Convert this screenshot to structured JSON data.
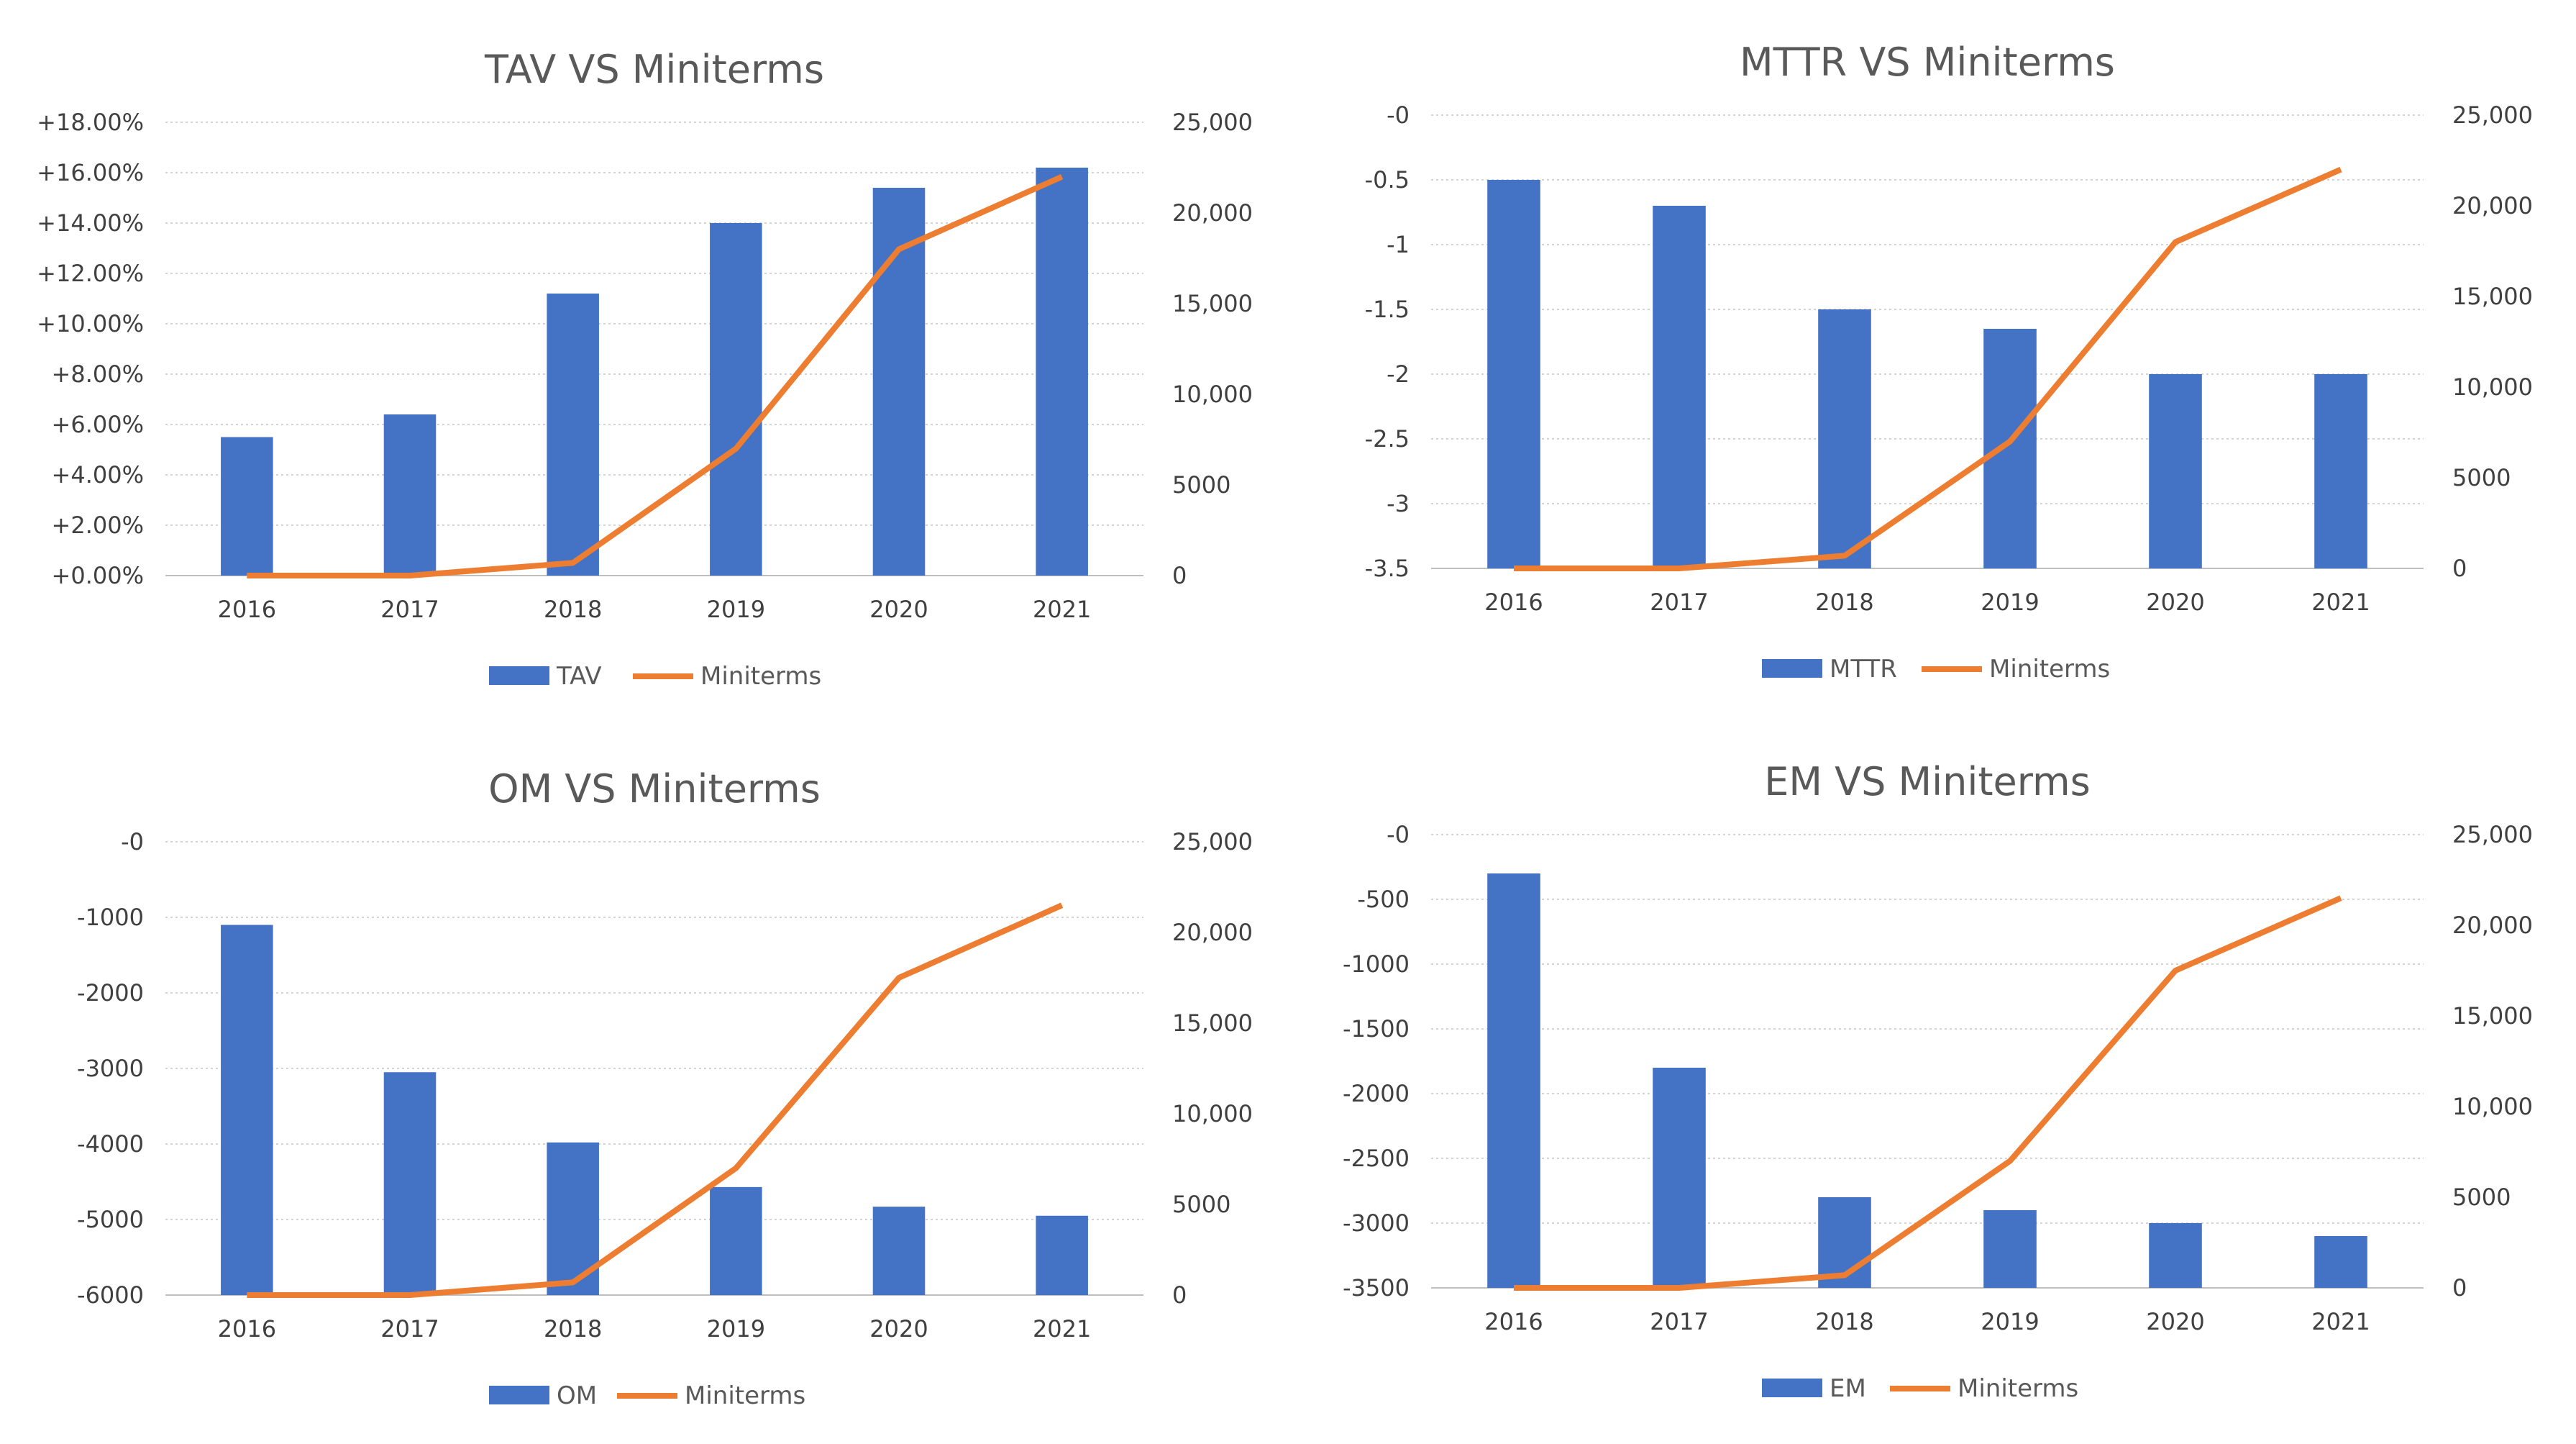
{
  "colors": {
    "bar": "#4472C4",
    "line": "#ED7D31"
  },
  "chart_data": [
    {
      "type": "bar",
      "title": "TAV VS Miniterms",
      "categories": [
        "2016",
        "2017",
        "2018",
        "2019",
        "2020",
        "2021"
      ],
      "series": [
        {
          "name": "TAV",
          "kind": "bar",
          "axis": "left",
          "values": [
            5.5,
            6.4,
            11.2,
            14.0,
            15.4,
            16.2
          ]
        },
        {
          "name": "Miniterms",
          "kind": "line",
          "axis": "right",
          "values": [
            0,
            0,
            700,
            7000,
            18000,
            22000
          ]
        }
      ],
      "left_axis": {
        "min": 0,
        "max": 18,
        "ticks": [
          "+0.00%",
          "+2.00%",
          "+4.00%",
          "+6.00%",
          "+8.00%",
          "+10.00%",
          "+12.00%",
          "+14.00%",
          "+16.00%",
          "+18.00%"
        ]
      },
      "right_axis": {
        "min": 0,
        "max": 25000,
        "ticks": [
          "0",
          "5000",
          "10,000",
          "15,000",
          "20,000",
          "25,000"
        ]
      },
      "legend": "bottom"
    },
    {
      "type": "bar",
      "title": "MTTR VS Miniterms",
      "categories": [
        "2016",
        "2017",
        "2018",
        "2019",
        "2020",
        "2021"
      ],
      "series": [
        {
          "name": "MTTR",
          "kind": "bar",
          "axis": "left",
          "values": [
            -0.5,
            -0.7,
            -1.5,
            -1.65,
            -2.0,
            -2.0
          ]
        },
        {
          "name": "Miniterms",
          "kind": "line",
          "axis": "right",
          "values": [
            0,
            0,
            700,
            7000,
            18000,
            22000
          ]
        }
      ],
      "left_axis": {
        "min": -3.5,
        "max": 0,
        "ticks": [
          "-3.5",
          "-3",
          "-2.5",
          "-2",
          "-1.5",
          "-1",
          "-0.5",
          "-0"
        ]
      },
      "right_axis": {
        "min": 0,
        "max": 25000,
        "ticks": [
          "0",
          "5000",
          "10,000",
          "15,000",
          "20,000",
          "25,000"
        ]
      },
      "legend": "bottom"
    },
    {
      "type": "bar",
      "title": "OM VS Miniterms",
      "categories": [
        "2016",
        "2017",
        "2018",
        "2019",
        "2020",
        "2021"
      ],
      "series": [
        {
          "name": "OM",
          "kind": "bar",
          "axis": "left",
          "values": [
            -1100,
            -3050,
            -3980,
            -4570,
            -4830,
            -4950
          ]
        },
        {
          "name": "Miniterms",
          "kind": "line",
          "axis": "right",
          "values": [
            0,
            0,
            700,
            7000,
            17500,
            21500
          ]
        }
      ],
      "left_axis": {
        "min": -6000,
        "max": 0,
        "ticks": [
          "-6000",
          "-5000",
          "-4000",
          "-3000",
          "-2000",
          "-1000",
          "-0"
        ]
      },
      "right_axis": {
        "min": 0,
        "max": 25000,
        "ticks": [
          "0",
          "5000",
          "10,000",
          "15,000",
          "20,000",
          "25,000"
        ]
      },
      "legend": "bottom"
    },
    {
      "type": "bar",
      "title": "EM VS Miniterms",
      "categories": [
        "2016",
        "2017",
        "2018",
        "2019",
        "2020",
        "2021"
      ],
      "series": [
        {
          "name": "EM",
          "kind": "bar",
          "axis": "left",
          "values": [
            -300,
            -1800,
            -2800,
            -2900,
            -3000,
            -3100
          ]
        },
        {
          "name": "Miniterms",
          "kind": "line",
          "axis": "right",
          "values": [
            0,
            0,
            700,
            7000,
            17500,
            21500
          ]
        }
      ],
      "left_axis": {
        "min": -3500,
        "max": 0,
        "ticks": [
          "-3500",
          "-3000",
          "-2500",
          "-2000",
          "-1500",
          "-1000",
          "-500",
          "-0"
        ]
      },
      "right_axis": {
        "min": 0,
        "max": 25000,
        "ticks": [
          "0",
          "5000",
          "10,000",
          "15,000",
          "20,000",
          "25,000"
        ]
      },
      "legend": "bottom"
    }
  ]
}
